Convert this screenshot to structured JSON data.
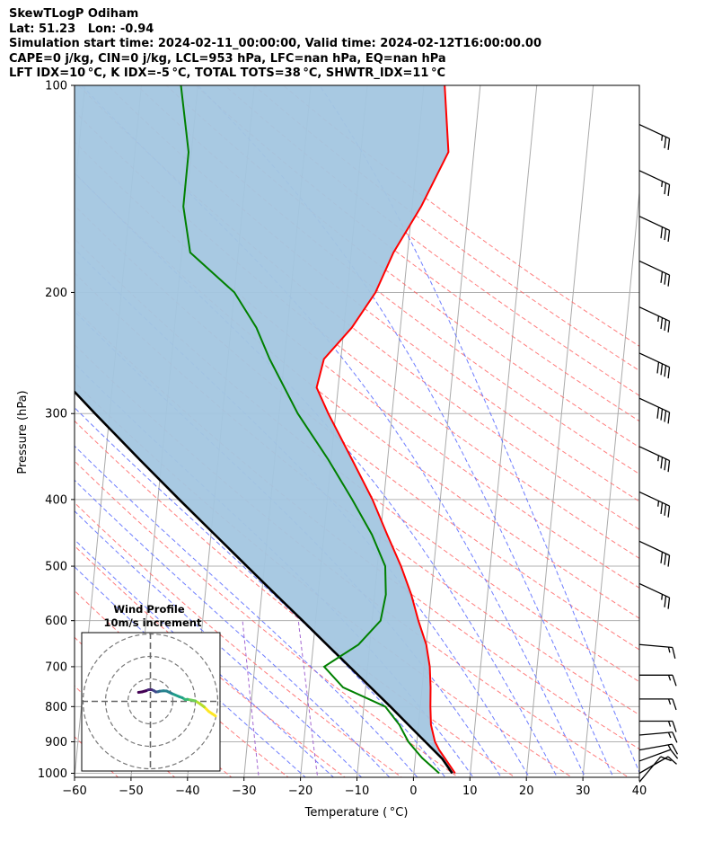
{
  "header": {
    "line1": "SkewTLogP Odiham",
    "line2": "Lat: 51.23   Lon: -0.94",
    "line3": "Simulation start time: 2024-02-11_00:00:00, Valid time: 2024-02-12T16:00:00.00",
    "line4": "CAPE=0 j/kg, CIN=0 j/kg, LCL=953 hPa, LFC=nan hPa, EQ=nan hPa",
    "line5": "LFT IDX=10 °C, K IDX=-5 °C, TOTAL TOTS=38 °C, SHWTR_IDX=11 °C"
  },
  "chart_data": {
    "type": "line",
    "subtype": "skew-t log-p diagram",
    "xlabel": "Temperature ( °C)",
    "ylabel": "Pressure (hPa)",
    "xlim": [
      -60,
      40
    ],
    "ylim": [
      1050,
      100
    ],
    "yscale": "log",
    "x_ticks": [
      "−60",
      "−50",
      "−40",
      "−30",
      "−20",
      "−10",
      "0",
      "10",
      "20",
      "30",
      "40"
    ],
    "y_ticks": [
      "100",
      "200",
      "300",
      "400",
      "500",
      "600",
      "700",
      "800",
      "900",
      "1000"
    ],
    "grid": true,
    "colors": {
      "temperature": "#ff0000",
      "dewpoint": "#008000",
      "parcel": "#000000",
      "shading": "#a3c6e0",
      "dry_adiabats": "#ff6666",
      "moist_adiabats": "#5566ff",
      "mixing_ratio": "#9955cc",
      "isotherms": "#aaaaaa"
    },
    "series": [
      {
        "role": "temperature",
        "points": [
          [
            1000,
            7.3
          ],
          [
            950,
            5.2
          ],
          [
            925,
            4.1
          ],
          [
            900,
            3.2
          ],
          [
            850,
            2.2
          ],
          [
            800,
            1.8
          ],
          [
            750,
            1.5
          ],
          [
            700,
            1.0
          ],
          [
            650,
            0.0
          ],
          [
            600,
            -1.8
          ],
          [
            550,
            -3.5
          ],
          [
            500,
            -5.8
          ],
          [
            450,
            -8.8
          ],
          [
            400,
            -12.0
          ],
          [
            350,
            -16.3
          ],
          [
            300,
            -21.3
          ],
          [
            275,
            -23.8
          ],
          [
            250,
            -23.0
          ],
          [
            225,
            -18.6
          ],
          [
            200,
            -15.0
          ],
          [
            175,
            -12.5
          ],
          [
            150,
            -8.4
          ],
          [
            125,
            -4.5
          ],
          [
            100,
            -6.3
          ]
        ]
      },
      {
        "role": "dewpoint",
        "points": [
          [
            1000,
            4.5
          ],
          [
            950,
            1.2
          ],
          [
            900,
            -1.5
          ],
          [
            850,
            -3.4
          ],
          [
            800,
            -6.2
          ],
          [
            750,
            -14.0
          ],
          [
            700,
            -17.7
          ],
          [
            650,
            -12.0
          ],
          [
            600,
            -8.5
          ],
          [
            550,
            -8.0
          ],
          [
            500,
            -8.6
          ],
          [
            450,
            -11.5
          ],
          [
            400,
            -15.6
          ],
          [
            350,
            -20.5
          ],
          [
            300,
            -26.7
          ],
          [
            250,
            -32.6
          ],
          [
            225,
            -35.5
          ],
          [
            200,
            -40.0
          ],
          [
            175,
            -48.5
          ],
          [
            150,
            -50.5
          ],
          [
            125,
            -50.5
          ],
          [
            100,
            -53.0
          ]
        ]
      },
      {
        "role": "parcel",
        "points": [
          [
            1000,
            6.8
          ],
          [
            953,
            4.8
          ],
          [
            900,
            1.5
          ],
          [
            850,
            -1.8
          ],
          [
            800,
            -5.3
          ],
          [
            750,
            -9.1
          ],
          [
            700,
            -13.2
          ],
          [
            650,
            -17.6
          ],
          [
            600,
            -22.3
          ],
          [
            550,
            -27.5
          ],
          [
            500,
            -33.1
          ],
          [
            450,
            -39.3
          ],
          [
            400,
            -46.2
          ],
          [
            350,
            -53.9
          ],
          [
            300,
            -62.6
          ],
          [
            250,
            -72.6
          ],
          [
            200,
            -84.5
          ],
          [
            150,
            -99.4
          ],
          [
            100,
            -120.3
          ]
        ]
      }
    ],
    "wind_barbs": [
      {
        "p": 1030,
        "speed_kt": 10,
        "dir_deg": 220
      },
      {
        "p": 1000,
        "speed_kt": 10,
        "dir_deg": 240
      },
      {
        "p": 960,
        "speed_kt": 10,
        "dir_deg": 250
      },
      {
        "p": 925,
        "speed_kt": 15,
        "dir_deg": 260
      },
      {
        "p": 880,
        "speed_kt": 15,
        "dir_deg": 265
      },
      {
        "p": 840,
        "speed_kt": 15,
        "dir_deg": 270
      },
      {
        "p": 780,
        "speed_kt": 15,
        "dir_deg": 270
      },
      {
        "p": 720,
        "speed_kt": 15,
        "dir_deg": 270
      },
      {
        "p": 650,
        "speed_kt": 15,
        "dir_deg": 275
      },
      {
        "p": 530,
        "speed_kt": 25,
        "dir_deg": 295
      },
      {
        "p": 460,
        "speed_kt": 30,
        "dir_deg": 295
      },
      {
        "p": 390,
        "speed_kt": 35,
        "dir_deg": 295
      },
      {
        "p": 335,
        "speed_kt": 35,
        "dir_deg": 295
      },
      {
        "p": 285,
        "speed_kt": 40,
        "dir_deg": 295
      },
      {
        "p": 245,
        "speed_kt": 40,
        "dir_deg": 295
      },
      {
        "p": 210,
        "speed_kt": 35,
        "dir_deg": 295
      },
      {
        "p": 180,
        "speed_kt": 30,
        "dir_deg": 295
      },
      {
        "p": 155,
        "speed_kt": 30,
        "dir_deg": 295
      },
      {
        "p": 133,
        "speed_kt": 25,
        "dir_deg": 295
      },
      {
        "p": 114,
        "speed_kt": 25,
        "dir_deg": 295
      }
    ],
    "inset": {
      "title_line1": "Wind Profile",
      "title_line2": "10m/s increment",
      "type": "hodograph",
      "ring_step_ms": 10,
      "rings": 3,
      "points_uv": [
        [
          29,
          -6.5
        ],
        [
          27.5,
          -5.5
        ],
        [
          26,
          -4.5
        ],
        [
          24,
          -2.5
        ],
        [
          22,
          -1
        ],
        [
          20,
          0.2
        ],
        [
          18,
          0.6
        ],
        [
          16.5,
          0.9
        ],
        [
          15.5,
          0.8
        ],
        [
          14.2,
          1.6
        ],
        [
          12.8,
          2.1
        ],
        [
          9.5,
          3.5
        ],
        [
          7.2,
          4.6
        ],
        [
          5.8,
          4.7
        ],
        [
          4.0,
          4.5
        ],
        [
          3.4,
          4.3
        ],
        [
          2.4,
          4.2
        ],
        [
          1.5,
          4.8
        ],
        [
          0.5,
          5.2
        ],
        [
          -0.8,
          5.2
        ],
        [
          -2.0,
          4.7
        ],
        [
          -3.8,
          4.2
        ],
        [
          -5.3,
          4.0
        ]
      ]
    }
  }
}
